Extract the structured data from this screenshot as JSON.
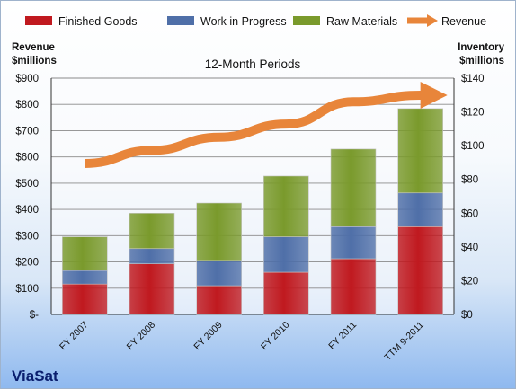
{
  "chart_data": {
    "type": "bar",
    "stacked": true,
    "title": "12-Month Periods",
    "company": "ViaSat",
    "categories": [
      "FY 2007",
      "FY 2008",
      "FY 2009",
      "FY 2010",
      "FY 2011",
      "TTM 9-2011"
    ],
    "y_left": {
      "label_line1": "Revenue",
      "label_line2": "$millions",
      "range": [
        0,
        900
      ],
      "ticks": [
        0,
        100,
        200,
        300,
        400,
        500,
        600,
        700,
        800,
        900
      ],
      "tick_labels": [
        "$-",
        "$100",
        "$200",
        "$300",
        "$400",
        "$500",
        "$600",
        "$700",
        "$800",
        "$900"
      ]
    },
    "y_right": {
      "label_line1": "Inventory",
      "label_line2": "$millions",
      "range": [
        0,
        140
      ],
      "ticks": [
        0,
        20,
        40,
        60,
        80,
        100,
        120,
        140
      ],
      "tick_labels": [
        "$0",
        "$20",
        "$40",
        "$60",
        "$80",
        "$100",
        "$120",
        "$140"
      ]
    },
    "series": [
      {
        "name": "Finished Goods",
        "axis": "right",
        "color": "#c0191f",
        "values": [
          18,
          30,
          17,
          25,
          33,
          52
        ]
      },
      {
        "name": "Work in Progress",
        "axis": "right",
        "color": "#4f6fa8",
        "values": [
          8,
          9,
          15,
          21,
          19,
          20
        ]
      },
      {
        "name": "Raw Materials",
        "axis": "right",
        "color": "#7a9a2c",
        "values": [
          20,
          21,
          34,
          36,
          46,
          50
        ]
      },
      {
        "name": "Revenue",
        "axis": "left",
        "type": "line",
        "color": "#e8853a",
        "values": [
          575,
          625,
          675,
          725,
          810,
          835
        ]
      }
    ],
    "grid": true,
    "legend_position": "top"
  }
}
